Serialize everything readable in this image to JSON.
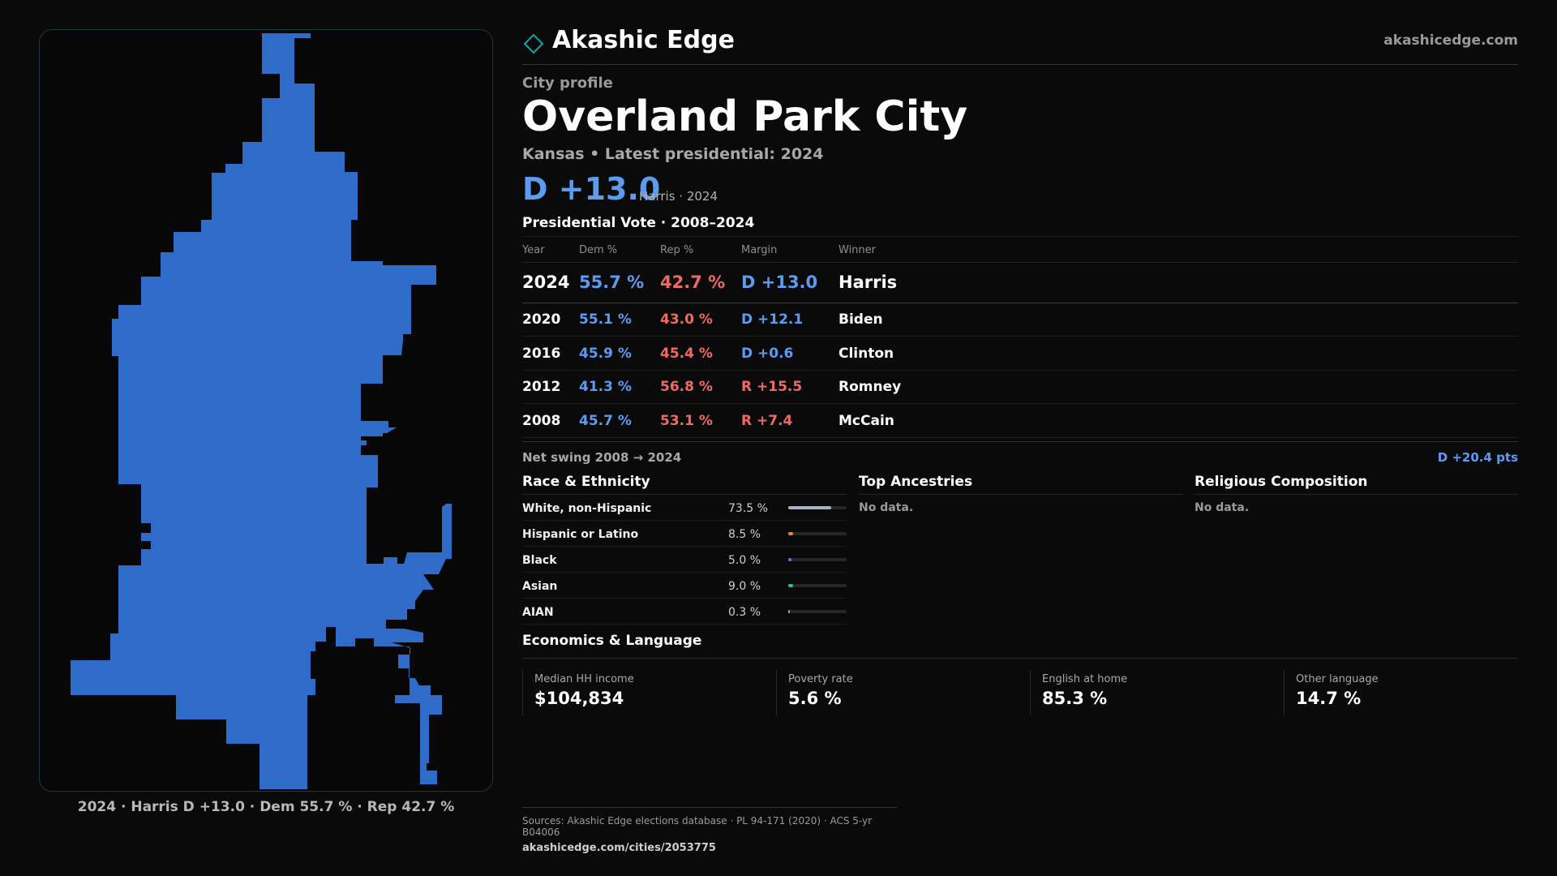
{
  "brand": {
    "name": "Akashic Edge",
    "url": "akashicedge.com"
  },
  "profile": {
    "kicker": "City profile",
    "city": "Overland Park City",
    "subtitle": "Kansas • Latest presidential: 2024",
    "margin": "D +13.0",
    "margin_note": "Harris · 2024"
  },
  "map": {
    "caption": "2024 · Harris D +13.0 · Dem 55.7 % · Rep 42.7 %",
    "fill_color": "#2f6bc8"
  },
  "votes": {
    "title": "Presidential Vote · 2008–2024",
    "headers": [
      "Year",
      "Dem %",
      "Rep %",
      "Margin",
      "Winner"
    ],
    "rows": [
      {
        "year": "2024",
        "dem": "55.7 %",
        "rep": "42.7 %",
        "margin": "D +13.0",
        "winner": "Harris",
        "party": "D"
      },
      {
        "year": "2020",
        "dem": "55.1 %",
        "rep": "43.0 %",
        "margin": "D +12.1",
        "winner": "Biden",
        "party": "D"
      },
      {
        "year": "2016",
        "dem": "45.9 %",
        "rep": "45.4 %",
        "margin": "D +0.6",
        "winner": "Clinton",
        "party": "D"
      },
      {
        "year": "2012",
        "dem": "41.3 %",
        "rep": "56.8 %",
        "margin": "R +15.5",
        "winner": "Romney",
        "party": "R"
      },
      {
        "year": "2008",
        "dem": "45.7 %",
        "rep": "53.1 %",
        "margin": "R +7.4",
        "winner": "McCain",
        "party": "R"
      }
    ]
  },
  "swing": {
    "label": "Net swing 2008 → 2024",
    "value": "D +20.4 pts"
  },
  "race": {
    "title": "Race & Ethnicity",
    "rows": [
      {
        "label": "White, non-Hispanic",
        "pct": "73.5 %",
        "share": 73.5,
        "color": "#a8b2c0"
      },
      {
        "label": "Hispanic or Latino",
        "pct": "8.5 %",
        "share": 8.5,
        "color": "#e38a2e"
      },
      {
        "label": "Black",
        "pct": "5.0 %",
        "share": 5.0,
        "color": "#6c6cf0"
      },
      {
        "label": "Asian",
        "pct": "9.0 %",
        "share": 9.0,
        "color": "#2ec27e"
      },
      {
        "label": "AIAN",
        "pct": "0.3 %",
        "share": 0.3,
        "color": "#c0a060"
      }
    ]
  },
  "ancestries": {
    "title": "Top Ancestries",
    "empty": "No data."
  },
  "religion": {
    "title": "Religious Composition",
    "empty": "No data."
  },
  "economics": {
    "title": "Economics & Language",
    "cards": [
      {
        "label": "Median HH income",
        "value": "$104,834"
      },
      {
        "label": "Poverty rate",
        "value": "5.6 %"
      },
      {
        "label": "English at home",
        "value": "85.3 %"
      },
      {
        "label": "Other language",
        "value": "14.7 %"
      }
    ]
  },
  "footer": {
    "sources": "Sources: Akashic Edge elections database · PL 94-171 (2020) · ACS 5-yr B04006",
    "url": "akashicedge.com/cities/2053775"
  }
}
